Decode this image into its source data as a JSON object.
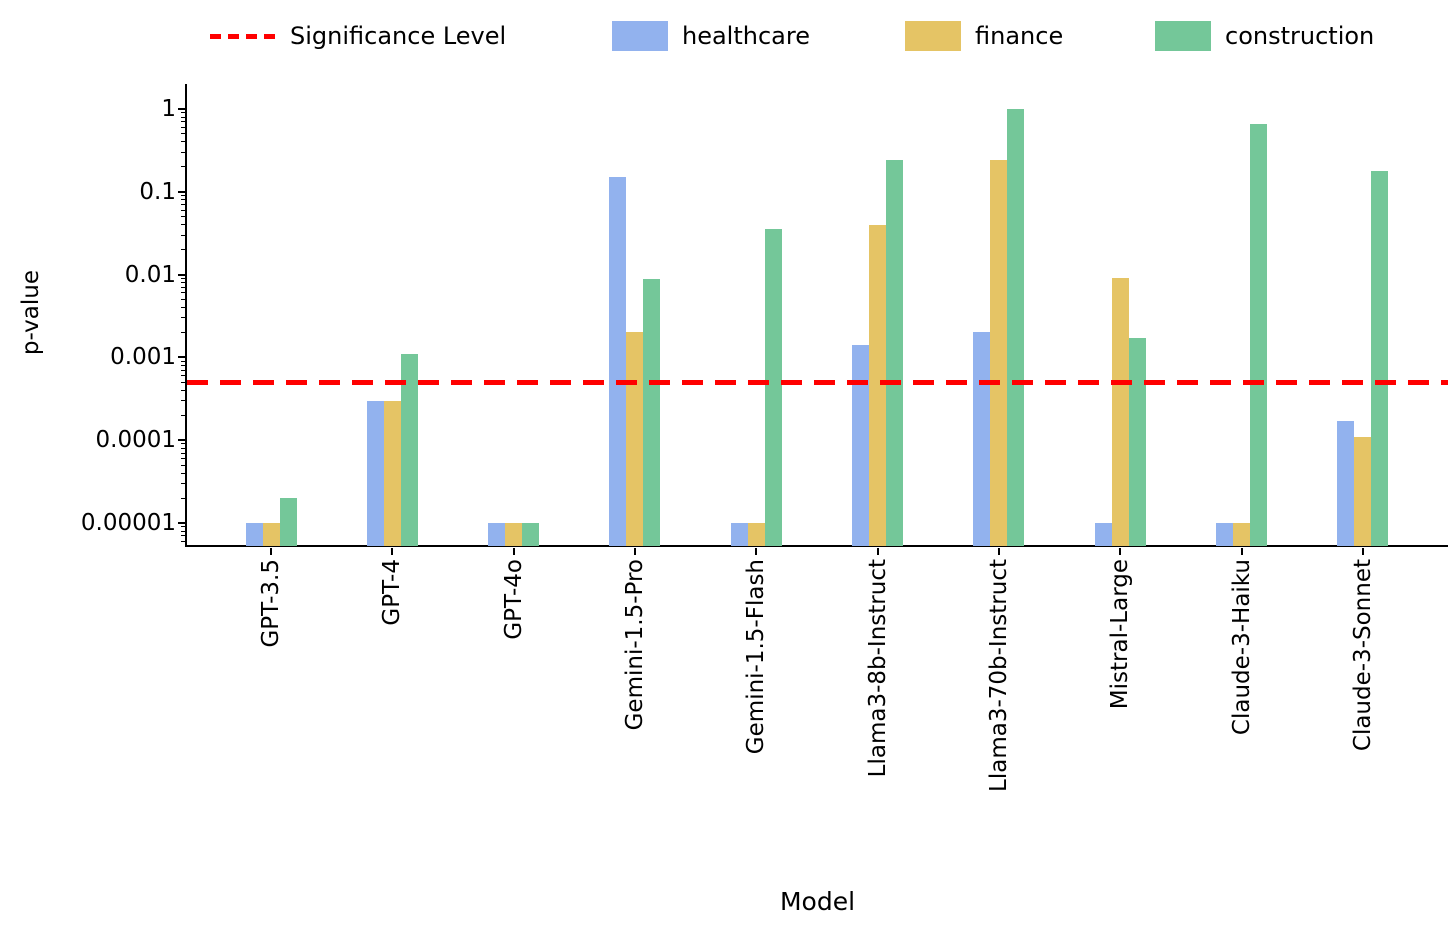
{
  "chart_data": {
    "type": "bar",
    "title": "",
    "xlabel": "Model",
    "ylabel": "p-value",
    "y_scale": "log",
    "ylim": [
      5.1e-06,
      2.0
    ],
    "grid": false,
    "legend_position": "top",
    "categories": [
      "GPT-3.5",
      "GPT-4",
      "GPT-4o",
      "Gemini-1.5-Pro",
      "Gemini-1.5-Flash",
      "Llama3-8b-Instruct",
      "Llama3-70b-Instruct",
      "Mistral-Large",
      "Claude-3-Haiku",
      "Claude-3-Sonnet"
    ],
    "series": [
      {
        "name": "healthcare",
        "color": "#92b2ee",
        "values": [
          1e-05,
          0.0003,
          1e-05,
          0.15,
          1e-05,
          0.0014,
          0.002,
          1e-05,
          1e-05,
          0.00017
        ]
      },
      {
        "name": "finance",
        "color": "#e5c465",
        "values": [
          1e-05,
          0.0003,
          1e-05,
          0.002,
          1e-05,
          0.04,
          0.24,
          0.009,
          1e-05,
          0.00011
        ]
      },
      {
        "name": "construction",
        "color": "#74c799",
        "values": [
          2e-05,
          0.0011,
          1e-05,
          0.0088,
          0.036,
          0.24,
          1.0,
          0.0017,
          0.66,
          0.18
        ]
      }
    ],
    "significance": {
      "label": "Significance Level",
      "value": 0.0005,
      "color": "#ff0000",
      "style": "dashed"
    },
    "yticks": {
      "values": [
        1,
        0.1,
        0.01,
        0.001,
        0.0001,
        1e-05
      ],
      "labels": [
        "1",
        "0.1",
        "0.01",
        "0.001",
        "0.0001",
        "0.00001"
      ]
    }
  }
}
